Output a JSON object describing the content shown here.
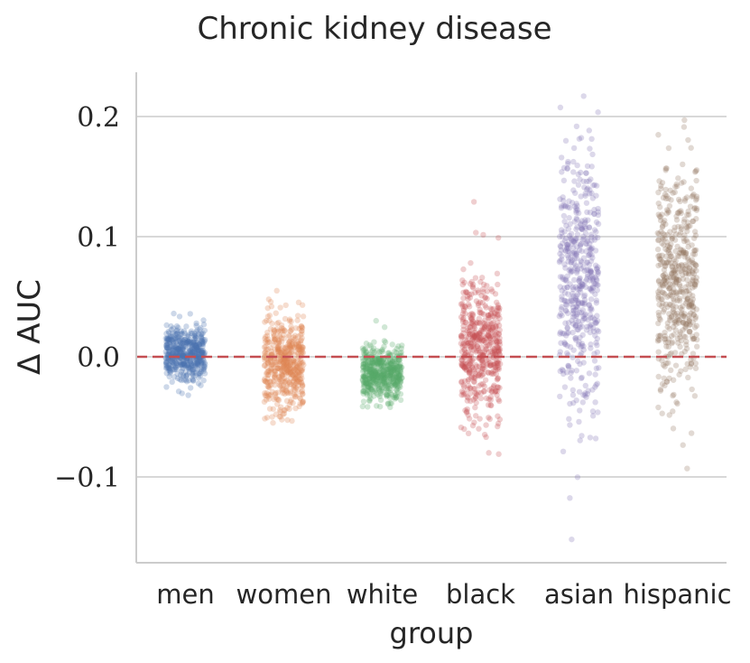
{
  "chart_data": {
    "type": "scatter",
    "subtype": "strip",
    "title": "Chronic kidney disease",
    "xlabel": "group",
    "ylabel": "Δ AUC",
    "ylim": [
      -0.175,
      0.235
    ],
    "yticks": [
      -0.1,
      0.0,
      0.1,
      0.2
    ],
    "ytick_labels": [
      "−0.1",
      "0.0",
      "0.1",
      "0.2"
    ],
    "reference_line": {
      "y": 0.0,
      "style": "dashed",
      "color": "#c44e52"
    },
    "grid": true,
    "categories": [
      "men",
      "women",
      "white",
      "black",
      "asian",
      "hispanic"
    ],
    "series": [
      {
        "name": "men",
        "color": "#4c72b0",
        "center": 0.003,
        "spread": 0.011,
        "min": -0.032,
        "max": 0.036,
        "count": 500
      },
      {
        "name": "women",
        "color": "#dd8452",
        "center": -0.008,
        "spread": 0.02,
        "min": -0.055,
        "max": 0.055,
        "count": 500
      },
      {
        "name": "white",
        "color": "#55a868",
        "center": -0.014,
        "spread": 0.011,
        "min": -0.042,
        "max": 0.03,
        "count": 500
      },
      {
        "name": "black",
        "color": "#c44e52",
        "center": 0.008,
        "spread": 0.028,
        "min": -0.081,
        "max": 0.129,
        "count": 500
      },
      {
        "name": "asian",
        "color": "#8172b3",
        "center": 0.065,
        "spread": 0.055,
        "min": -0.152,
        "max": 0.217,
        "count": 500
      },
      {
        "name": "hispanic",
        "color": "#937860",
        "center": 0.062,
        "spread": 0.045,
        "min": -0.093,
        "max": 0.197,
        "count": 500
      }
    ]
  }
}
